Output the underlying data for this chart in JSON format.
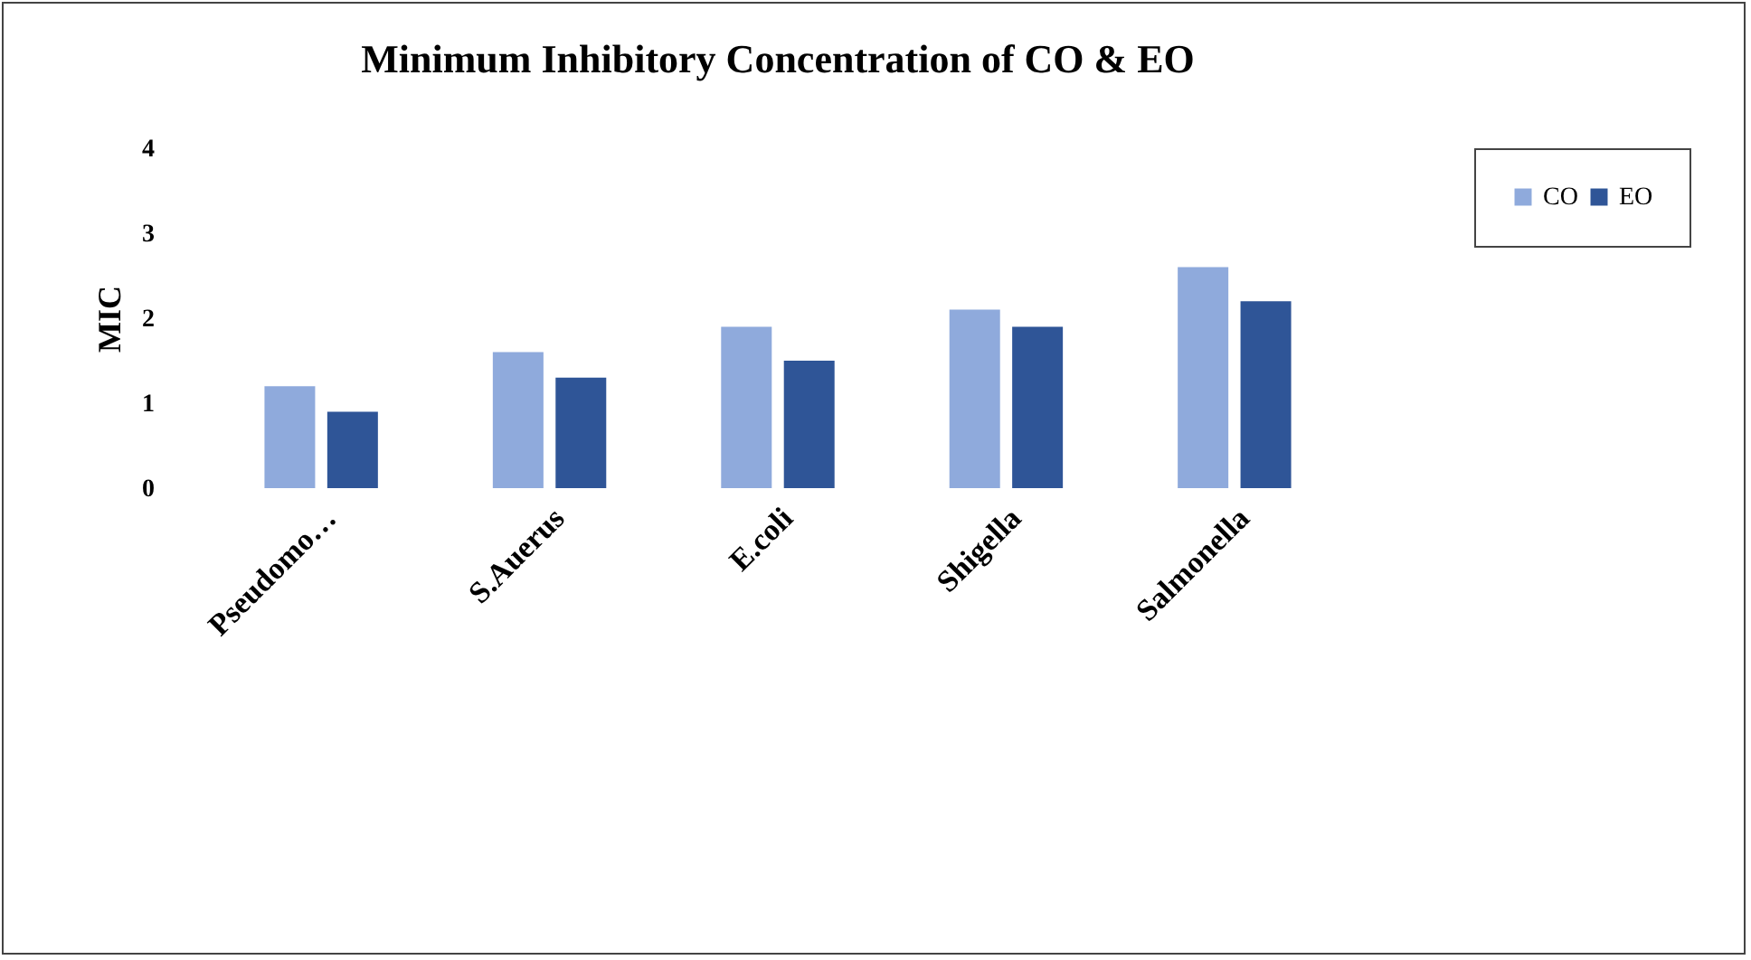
{
  "chart_data": {
    "type": "bar",
    "title": "Minimum Inhibitory Concentration of CO & EO",
    "ylabel": "MIC",
    "categories": [
      "Pseudomo…",
      "S.Auerus",
      "E.coli",
      "Shigella",
      "Salmonella"
    ],
    "series": [
      {
        "name": "CO",
        "color": "#8faadc",
        "values": [
          1.2,
          1.6,
          1.9,
          2.1,
          2.6
        ]
      },
      {
        "name": "EO",
        "color": "#2f5597",
        "values": [
          0.9,
          1.3,
          1.5,
          1.9,
          2.2
        ]
      }
    ],
    "ylim": [
      0,
      4
    ],
    "yticks": [
      0,
      1,
      2,
      3,
      4
    ],
    "grid": false,
    "legend": "right"
  }
}
